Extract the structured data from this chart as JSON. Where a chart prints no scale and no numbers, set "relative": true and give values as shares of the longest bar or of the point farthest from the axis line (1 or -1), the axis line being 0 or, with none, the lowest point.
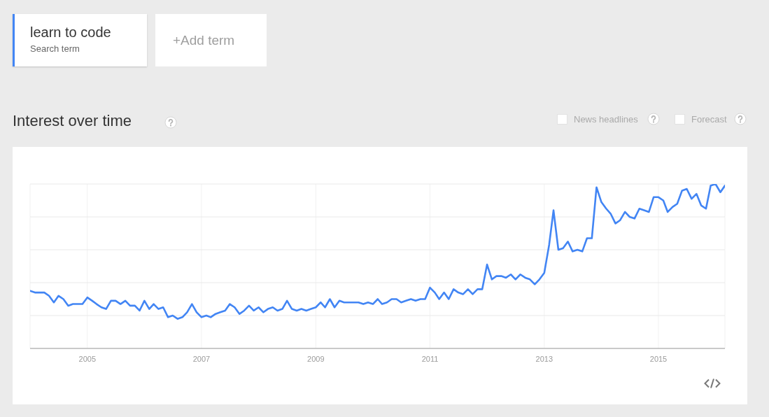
{
  "chart_data": {
    "type": "line",
    "title": "Interest over time",
    "relative": true,
    "legend": "top left",
    "grid": true,
    "annotations": [
      "Search term",
      "+Add term",
      "News headlines",
      "Forecast"
    ],
    "xlim": [
      "2004-01",
      "2016-03"
    ],
    "xticks": [
      "2005",
      "2007",
      "2009",
      "2011",
      "2013",
      "2015"
    ],
    "x": [
      "2004-01",
      "2004-02",
      "2004-03",
      "2004-04",
      "2004-05",
      "2004-06",
      "2004-07",
      "2004-08",
      "2004-09",
      "2004-10",
      "2004-11",
      "2004-12",
      "2005-01",
      "2005-02",
      "2005-03",
      "2005-04",
      "2005-05",
      "2005-06",
      "2005-07",
      "2005-08",
      "2005-09",
      "2005-10",
      "2005-11",
      "2005-12",
      "2006-01",
      "2006-02",
      "2006-03",
      "2006-04",
      "2006-05",
      "2006-06",
      "2006-07",
      "2006-08",
      "2006-09",
      "2006-10",
      "2006-11",
      "2006-12",
      "2007-01",
      "2007-02",
      "2007-03",
      "2007-04",
      "2007-05",
      "2007-06",
      "2007-07",
      "2007-08",
      "2007-09",
      "2007-10",
      "2007-11",
      "2007-12",
      "2008-01",
      "2008-02",
      "2008-03",
      "2008-04",
      "2008-05",
      "2008-06",
      "2008-07",
      "2008-08",
      "2008-09",
      "2008-10",
      "2008-11",
      "2008-12",
      "2009-01",
      "2009-02",
      "2009-03",
      "2009-04",
      "2009-05",
      "2009-06",
      "2009-07",
      "2009-08",
      "2009-09",
      "2009-10",
      "2009-11",
      "2009-12",
      "2010-01",
      "2010-02",
      "2010-03",
      "2010-04",
      "2010-05",
      "2010-06",
      "2010-07",
      "2010-08",
      "2010-09",
      "2010-10",
      "2010-11",
      "2010-12",
      "2011-01",
      "2011-02",
      "2011-03",
      "2011-04",
      "2011-05",
      "2011-06",
      "2011-07",
      "2011-08",
      "2011-09",
      "2011-10",
      "2011-11",
      "2011-12",
      "2012-01",
      "2012-02",
      "2012-03",
      "2012-04",
      "2012-05",
      "2012-06",
      "2012-07",
      "2012-08",
      "2012-09",
      "2012-10",
      "2012-11",
      "2012-12",
      "2013-01",
      "2013-02",
      "2013-03",
      "2013-04",
      "2013-05",
      "2013-06",
      "2013-07",
      "2013-08",
      "2013-09",
      "2013-10",
      "2013-11",
      "2013-12",
      "2014-01",
      "2014-02",
      "2014-03",
      "2014-04",
      "2014-05",
      "2014-06",
      "2014-07",
      "2014-08",
      "2014-09",
      "2014-10",
      "2014-11",
      "2014-12",
      "2015-01",
      "2015-02",
      "2015-03",
      "2015-04",
      "2015-05",
      "2015-06",
      "2015-07",
      "2015-08",
      "2015-09",
      "2015-10",
      "2015-11",
      "2015-12",
      "2016-01",
      "2016-02",
      "2016-03"
    ],
    "series": [
      {
        "name": "learn to code",
        "color": "#4285f4",
        "values": [
          0.35,
          0.34,
          0.34,
          0.34,
          0.32,
          0.28,
          0.32,
          0.3,
          0.26,
          0.27,
          0.27,
          0.27,
          0.31,
          0.29,
          0.27,
          0.25,
          0.24,
          0.29,
          0.29,
          0.27,
          0.29,
          0.26,
          0.26,
          0.23,
          0.29,
          0.24,
          0.27,
          0.24,
          0.25,
          0.19,
          0.2,
          0.18,
          0.19,
          0.22,
          0.27,
          0.22,
          0.19,
          0.2,
          0.19,
          0.21,
          0.22,
          0.23,
          0.27,
          0.25,
          0.21,
          0.23,
          0.26,
          0.23,
          0.25,
          0.22,
          0.24,
          0.25,
          0.23,
          0.24,
          0.29,
          0.24,
          0.23,
          0.24,
          0.23,
          0.24,
          0.25,
          0.28,
          0.25,
          0.3,
          0.25,
          0.29,
          0.28,
          0.28,
          0.28,
          0.28,
          0.27,
          0.28,
          0.27,
          0.3,
          0.27,
          0.28,
          0.3,
          0.3,
          0.28,
          0.29,
          0.3,
          0.29,
          0.3,
          0.3,
          0.37,
          0.34,
          0.3,
          0.34,
          0.3,
          0.36,
          0.34,
          0.33,
          0.36,
          0.33,
          0.36,
          0.36,
          0.51,
          0.42,
          0.44,
          0.44,
          0.43,
          0.45,
          0.42,
          0.45,
          0.43,
          0.42,
          0.39,
          0.42,
          0.46,
          0.63,
          0.84,
          0.6,
          0.61,
          0.65,
          0.59,
          0.6,
          0.59,
          0.67,
          0.67,
          0.98,
          0.89,
          0.85,
          0.82,
          0.76,
          0.78,
          0.83,
          0.8,
          0.79,
          0.85,
          0.84,
          0.83,
          0.92,
          0.92,
          0.9,
          0.83,
          0.86,
          0.88,
          0.96,
          0.97,
          0.91,
          0.94,
          0.87,
          0.85,
          0.99,
          1,
          0.95,
          0.99
        ]
      }
    ]
  }
}
